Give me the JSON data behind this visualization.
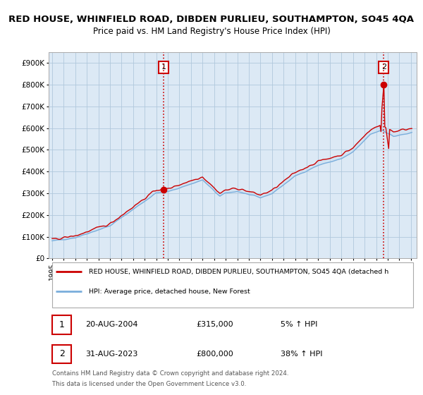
{
  "title": "RED HOUSE, WHINFIELD ROAD, DIBDEN PURLIEU, SOUTHAMPTON, SO45 4QA",
  "subtitle": "Price paid vs. HM Land Registry's House Price Index (HPI)",
  "title_fontsize": 9.5,
  "subtitle_fontsize": 8.5,
  "ylabel_ticks": [
    "£0",
    "£100K",
    "£200K",
    "£300K",
    "£400K",
    "£500K",
    "£600K",
    "£700K",
    "£800K",
    "£900K"
  ],
  "ytick_values": [
    0,
    100000,
    200000,
    300000,
    400000,
    500000,
    600000,
    700000,
    800000,
    900000
  ],
  "ylim": [
    0,
    950000
  ],
  "xlim_start": 1994.7,
  "xlim_end": 2026.5,
  "hpi_color": "#7aaedc",
  "price_color": "#cc0000",
  "sale1_year": 2004.63,
  "sale1_price": 315000,
  "sale2_year": 2023.66,
  "sale2_price": 800000,
  "legend_line1": "RED HOUSE, WHINFIELD ROAD, DIBDEN PURLIEU, SOUTHAMPTON, SO45 4QA (detached h",
  "legend_line2": "HPI: Average price, detached house, New Forest",
  "table_row1": [
    "1",
    "20-AUG-2004",
    "£315,000",
    "5% ↑ HPI"
  ],
  "table_row2": [
    "2",
    "31-AUG-2023",
    "£800,000",
    "38% ↑ HPI"
  ],
  "footnote1": "Contains HM Land Registry data © Crown copyright and database right 2024.",
  "footnote2": "This data is licensed under the Open Government Licence v3.0.",
  "bg_color": "#ffffff",
  "plot_bg_color": "#dce9f5",
  "grid_color": "#b0c8dc",
  "fill_color": "#dce9f5"
}
